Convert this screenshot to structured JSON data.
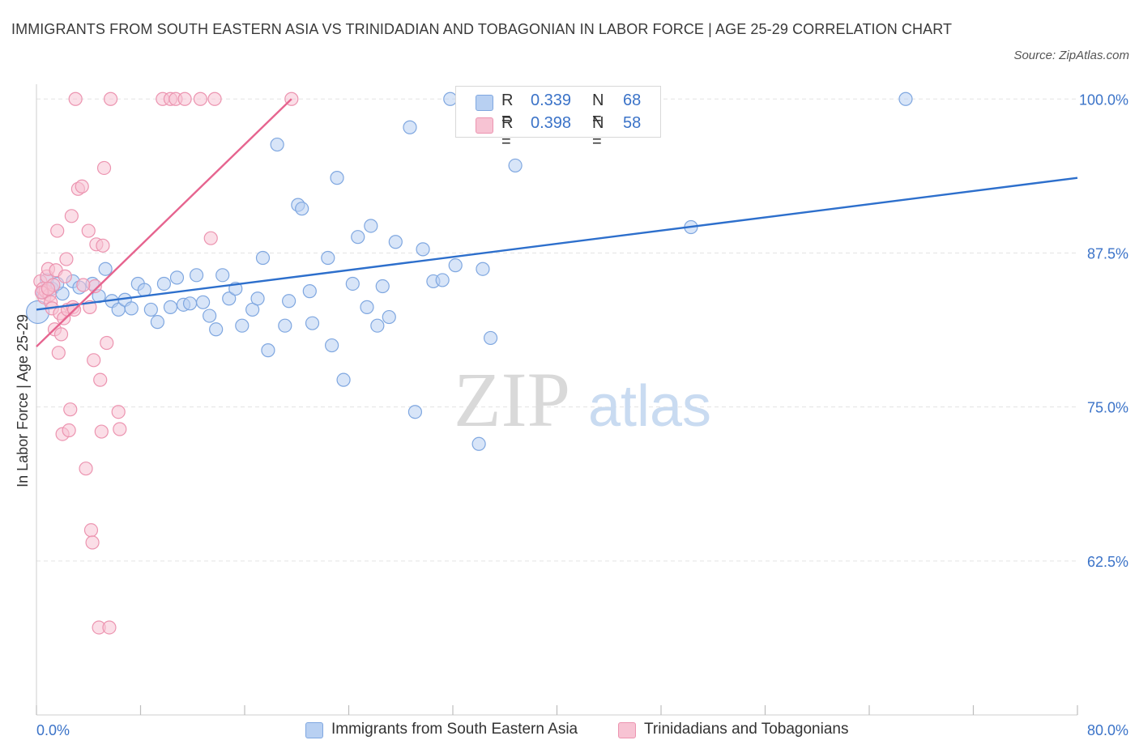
{
  "title": "IMMIGRANTS FROM SOUTH EASTERN ASIA VS TRINIDADIAN AND TOBAGONIAN IN LABOR FORCE | AGE 25-29 CORRELATION CHART",
  "source": "Source: ZipAtlas.com",
  "watermark": {
    "zip": "ZIP",
    "atlas": "atlas"
  },
  "legend": {
    "rows": [
      {
        "r_label": "R =",
        "r_value": "0.339",
        "n_label": "N =",
        "n_value": "68"
      },
      {
        "r_label": "R =",
        "r_value": "0.398",
        "n_label": "N =",
        "n_value": "58"
      }
    ]
  },
  "colors": {
    "blue_fill": "#b8d0f2",
    "blue_stroke": "#7fa7e0",
    "blue_line": "#2d6fcc",
    "pink_fill": "#f7c3d3",
    "pink_stroke": "#ec94b0",
    "pink_line": "#e6648f",
    "tick_label": "#3b73c8",
    "grid": "#e3e3e3"
  },
  "chart_data": {
    "type": "scatter",
    "title": "IMMIGRANTS FROM SOUTH EASTERN ASIA VS TRINIDADIAN AND TOBAGONIAN IN LABOR FORCE | AGE 25-29 CORRELATION CHART",
    "xlabel": "",
    "ylabel": "In Labor Force | Age 25-29",
    "xlim": [
      0,
      80
    ],
    "ylim": [
      50,
      101.2
    ],
    "x_tick_labels": [
      {
        "value": 0,
        "label": "0.0%"
      },
      {
        "value": 80,
        "label": "80.0%"
      }
    ],
    "y_tick_labels": [
      {
        "value": 100,
        "label": "100.0%"
      },
      {
        "value": 87.5,
        "label": "87.5%"
      },
      {
        "value": 75,
        "label": "75.0%"
      },
      {
        "value": 62.5,
        "label": "62.5%"
      }
    ],
    "grid": "horizontal dashed",
    "legend_position": "top-center",
    "series": [
      {
        "name": "Immigrants from South Eastern Asia",
        "color": "#7fa7e0",
        "trend": {
          "x": [
            0,
            80
          ],
          "y": [
            82.9,
            93.6
          ]
        },
        "points": [
          {
            "x": 0.1,
            "y": 82.7,
            "big": true
          },
          {
            "x": 0.5,
            "y": 84.3
          },
          {
            "x": 0.8,
            "y": 85.3
          },
          {
            "x": 1.2,
            "y": 84.6
          },
          {
            "x": 2.0,
            "y": 84.2
          },
          {
            "x": 2.8,
            "y": 85.2
          },
          {
            "x": 3.3,
            "y": 84.7
          },
          {
            "x": 4.3,
            "y": 85.0
          },
          {
            "x": 4.8,
            "y": 84.0
          },
          {
            "x": 5.3,
            "y": 86.2
          },
          {
            "x": 5.8,
            "y": 83.6
          },
          {
            "x": 6.3,
            "y": 82.9
          },
          {
            "x": 6.8,
            "y": 83.7
          },
          {
            "x": 7.3,
            "y": 83.0
          },
          {
            "x": 7.8,
            "y": 85.0
          },
          {
            "x": 8.3,
            "y": 84.5
          },
          {
            "x": 8.8,
            "y": 82.9
          },
          {
            "x": 9.3,
            "y": 81.9
          },
          {
            "x": 9.8,
            "y": 85.0
          },
          {
            "x": 10.3,
            "y": 83.1
          },
          {
            "x": 10.8,
            "y": 85.5
          },
          {
            "x": 11.3,
            "y": 83.3
          },
          {
            "x": 11.8,
            "y": 83.4
          },
          {
            "x": 12.3,
            "y": 85.7
          },
          {
            "x": 12.8,
            "y": 83.5
          },
          {
            "x": 13.3,
            "y": 82.4
          },
          {
            "x": 13.8,
            "y": 81.3
          },
          {
            "x": 14.3,
            "y": 85.7
          },
          {
            "x": 14.8,
            "y": 83.8
          },
          {
            "x": 15.3,
            "y": 84.6
          },
          {
            "x": 15.8,
            "y": 81.6
          },
          {
            "x": 16.6,
            "y": 82.9
          },
          {
            "x": 17.0,
            "y": 83.8
          },
          {
            "x": 17.4,
            "y": 87.1
          },
          {
            "x": 17.8,
            "y": 79.6
          },
          {
            "x": 18.5,
            "y": 96.3
          },
          {
            "x": 19.1,
            "y": 81.6
          },
          {
            "x": 19.4,
            "y": 83.6
          },
          {
            "x": 20.1,
            "y": 91.4
          },
          {
            "x": 20.4,
            "y": 91.1
          },
          {
            "x": 21.0,
            "y": 84.4
          },
          {
            "x": 21.2,
            "y": 81.8
          },
          {
            "x": 22.4,
            "y": 87.1
          },
          {
            "x": 22.7,
            "y": 80.0
          },
          {
            "x": 23.1,
            "y": 93.6
          },
          {
            "x": 23.6,
            "y": 77.2
          },
          {
            "x": 24.3,
            "y": 85.0
          },
          {
            "x": 24.7,
            "y": 88.8
          },
          {
            "x": 25.4,
            "y": 83.1
          },
          {
            "x": 25.7,
            "y": 89.7
          },
          {
            "x": 26.2,
            "y": 81.6
          },
          {
            "x": 26.6,
            "y": 84.8
          },
          {
            "x": 27.1,
            "y": 82.3
          },
          {
            "x": 27.6,
            "y": 88.4
          },
          {
            "x": 28.7,
            "y": 97.7
          },
          {
            "x": 29.1,
            "y": 74.6
          },
          {
            "x": 29.7,
            "y": 87.8
          },
          {
            "x": 30.5,
            "y": 85.2
          },
          {
            "x": 31.2,
            "y": 85.3
          },
          {
            "x": 31.8,
            "y": 100.0
          },
          {
            "x": 32.2,
            "y": 86.5
          },
          {
            "x": 34.0,
            "y": 72.0
          },
          {
            "x": 34.3,
            "y": 86.2
          },
          {
            "x": 34.9,
            "y": 80.6
          },
          {
            "x": 36.8,
            "y": 94.6
          },
          {
            "x": 50.3,
            "y": 89.6
          },
          {
            "x": 66.8,
            "y": 100.0
          },
          {
            "x": 1.6,
            "y": 85.0
          }
        ]
      },
      {
        "name": "Trinidadians and Tobagonians",
        "color": "#ec94b0",
        "trend": {
          "x": [
            0,
            19.6
          ],
          "y": [
            79.9,
            100.0
          ]
        },
        "points": [
          {
            "x": 0.3,
            "y": 85.2
          },
          {
            "x": 0.5,
            "y": 84.6
          },
          {
            "x": 0.6,
            "y": 83.9
          },
          {
            "x": 0.7,
            "y": 84.4
          },
          {
            "x": 0.8,
            "y": 85.6
          },
          {
            "x": 0.9,
            "y": 86.2
          },
          {
            "x": 1.0,
            "y": 84.1
          },
          {
            "x": 1.1,
            "y": 83.5
          },
          {
            "x": 1.2,
            "y": 83.0
          },
          {
            "x": 1.3,
            "y": 84.9
          },
          {
            "x": 1.4,
            "y": 81.3
          },
          {
            "x": 1.5,
            "y": 86.1
          },
          {
            "x": 1.6,
            "y": 89.3
          },
          {
            "x": 1.7,
            "y": 79.4
          },
          {
            "x": 1.8,
            "y": 82.6
          },
          {
            "x": 1.9,
            "y": 80.9
          },
          {
            "x": 2.0,
            "y": 72.8
          },
          {
            "x": 2.1,
            "y": 82.2
          },
          {
            "x": 2.2,
            "y": 85.6
          },
          {
            "x": 2.3,
            "y": 87.0
          },
          {
            "x": 2.4,
            "y": 82.9
          },
          {
            "x": 2.5,
            "y": 73.1
          },
          {
            "x": 2.6,
            "y": 74.8
          },
          {
            "x": 2.7,
            "y": 90.5
          },
          {
            "x": 2.8,
            "y": 83.1
          },
          {
            "x": 3.0,
            "y": 100.0
          },
          {
            "x": 3.2,
            "y": 92.7
          },
          {
            "x": 3.5,
            "y": 92.9
          },
          {
            "x": 3.8,
            "y": 70.0
          },
          {
            "x": 4.0,
            "y": 89.3
          },
          {
            "x": 4.1,
            "y": 83.1
          },
          {
            "x": 4.2,
            "y": 65.0
          },
          {
            "x": 4.3,
            "y": 64.0
          },
          {
            "x": 4.4,
            "y": 78.8
          },
          {
            "x": 4.5,
            "y": 84.8
          },
          {
            "x": 4.6,
            "y": 88.2
          },
          {
            "x": 4.8,
            "y": 57.1
          },
          {
            "x": 4.9,
            "y": 77.2
          },
          {
            "x": 5.0,
            "y": 73.0
          },
          {
            "x": 5.1,
            "y": 88.1
          },
          {
            "x": 5.2,
            "y": 94.4
          },
          {
            "x": 5.4,
            "y": 80.2
          },
          {
            "x": 5.6,
            "y": 57.1
          },
          {
            "x": 5.7,
            "y": 100.0
          },
          {
            "x": 6.3,
            "y": 74.6
          },
          {
            "x": 6.4,
            "y": 73.2
          },
          {
            "x": 9.7,
            "y": 100.0
          },
          {
            "x": 10.3,
            "y": 100.0
          },
          {
            "x": 10.7,
            "y": 100.0
          },
          {
            "x": 11.4,
            "y": 100.0
          },
          {
            "x": 12.6,
            "y": 100.0
          },
          {
            "x": 13.4,
            "y": 88.7
          },
          {
            "x": 13.7,
            "y": 100.0
          },
          {
            "x": 19.6,
            "y": 100.0
          },
          {
            "x": 0.4,
            "y": 84.3
          },
          {
            "x": 0.9,
            "y": 84.6
          },
          {
            "x": 2.9,
            "y": 82.9
          },
          {
            "x": 3.6,
            "y": 84.9
          }
        ]
      }
    ]
  }
}
